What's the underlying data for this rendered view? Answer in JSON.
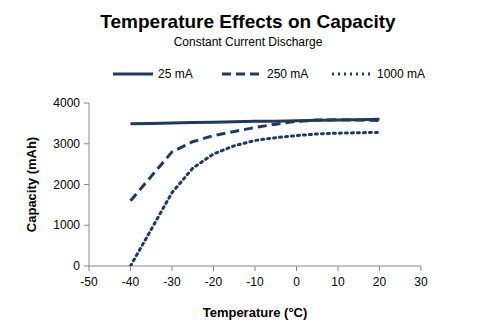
{
  "chart_data": {
    "type": "line",
    "title": "Temperature Effects on Capacity",
    "subtitle": "Constant Current Discharge",
    "x_label": "Temperature (°C)",
    "y_label": "Capacity (mAh)",
    "x": [
      -40,
      -35,
      -30,
      -25,
      -20,
      -15,
      -10,
      -5,
      0,
      5,
      10,
      15,
      20
    ],
    "series": [
      {
        "name": "25 mA",
        "color": "#1f3a5f",
        "line_style": "solid",
        "values": [
          3490,
          3500,
          3510,
          3520,
          3530,
          3540,
          3550,
          3555,
          3565,
          3575,
          3580,
          3590,
          3600
        ]
      },
      {
        "name": "250 mA",
        "color": "#1f3a5f",
        "line_style": "dashed",
        "values": [
          1600,
          2200,
          2800,
          3050,
          3200,
          3300,
          3400,
          3480,
          3550,
          3580,
          3590,
          3580,
          3570
        ]
      },
      {
        "name": "1000 mA",
        "color": "#1f3a5f",
        "line_style": "dotted",
        "values": [
          0,
          900,
          1800,
          2400,
          2750,
          2950,
          3080,
          3150,
          3200,
          3240,
          3260,
          3270,
          3280
        ]
      }
    ],
    "xlim": [
      -50,
      30
    ],
    "xticks": [
      -50,
      -40,
      -30,
      -20,
      -10,
      0,
      10,
      20,
      30
    ],
    "ylim": [
      0,
      4000
    ],
    "yticks": [
      0,
      1000,
      2000,
      3000,
      4000
    ],
    "grid": false,
    "legend": "top"
  }
}
